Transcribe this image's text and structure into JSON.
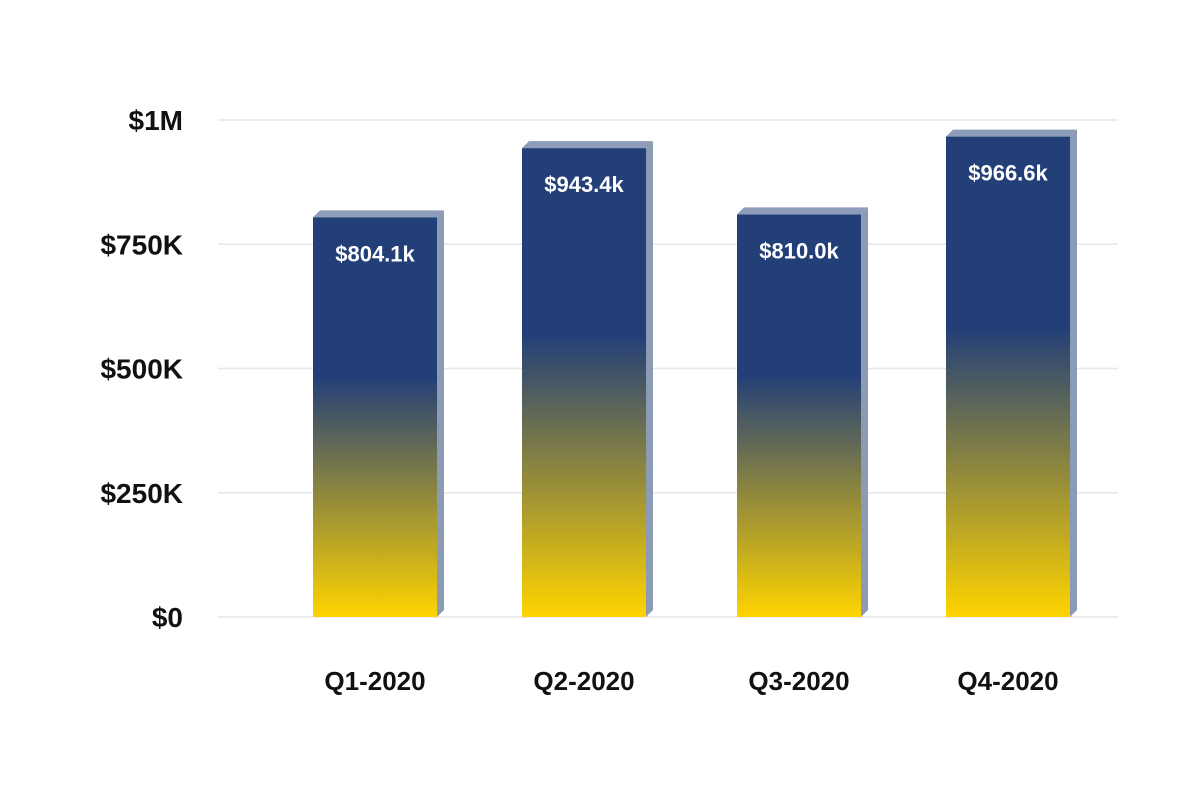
{
  "colors": {
    "bar_top": "#233f78",
    "bar_bottom": "#ffd400",
    "bar_side": "#8c9bb4",
    "bar_cap": "#8d9cb8",
    "grid": "#e6e6e6",
    "text": "#111111",
    "data_label": "#ffffff"
  },
  "chart_data": {
    "type": "bar",
    "categories": [
      "Q1-2020",
      "Q2-2020",
      "Q3-2020",
      "Q4-2020"
    ],
    "values": [
      804100,
      943400,
      810000,
      966600
    ],
    "data_labels": [
      "$804.1k",
      "$943.4k",
      "$810.0k",
      "$966.6k"
    ],
    "y_ticks": [
      0,
      250000,
      500000,
      750000,
      1000000
    ],
    "y_tick_labels": [
      "$0",
      "$250K",
      "$500K",
      "$750K",
      "$1M"
    ],
    "ylim": [
      0,
      1000000
    ],
    "grid": true,
    "legend": false,
    "style": "3d-gradient"
  }
}
